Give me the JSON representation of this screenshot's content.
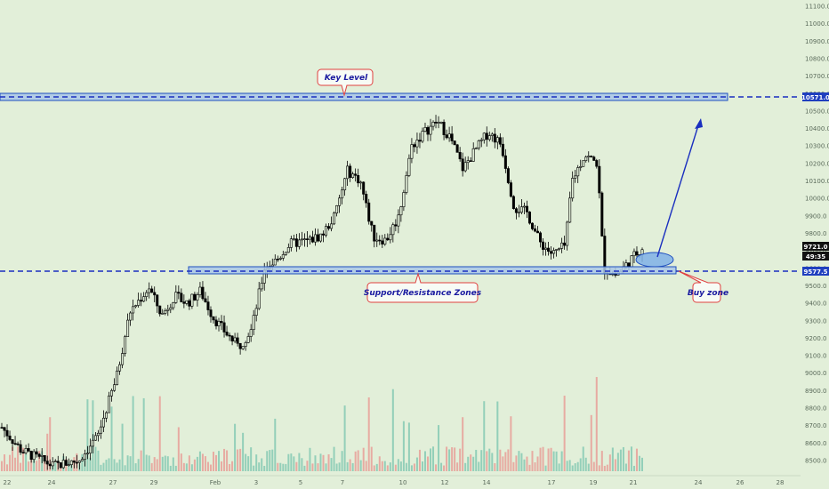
{
  "colors": {
    "background": "#e2efd9",
    "candle": "#000000",
    "vol_up": "#7fc7b0",
    "vol_down": "#e99a93",
    "zone_fill": "#a9c7e8",
    "zone_stroke": "#1f4fbf",
    "dash": "#1a2fbf",
    "arrow": "#1a2fbf",
    "callout_text": "#1a1aa0",
    "callout_border": "#e04040"
  },
  "annotations": {
    "key_level": "Key Level",
    "sr_zones": "Support/Resistance Zones",
    "buy_zone": "Buy zone"
  },
  "price_tags": {
    "upper": "10571.0",
    "current": "9721.0",
    "countdown": "49:35",
    "lower": "9577.5"
  },
  "chart_data": {
    "type": "candlestick",
    "ylim": [
      8450,
      11150
    ],
    "y_ticks": [
      "11100.0",
      "11000.0",
      "10900.0",
      "10800.0",
      "10700.0",
      "10600.0",
      "10500.0",
      "10400.0",
      "10300.0",
      "10200.0",
      "10100.0",
      "10000.0",
      "9900.0",
      "9800.0",
      "9700.0",
      "9600.0",
      "9500.0",
      "9400.0",
      "9300.0",
      "9200.0",
      "9100.0",
      "9000.0",
      "8900.0",
      "8800.0",
      "8700.0",
      "8600.0",
      "8500.0"
    ],
    "x_ticks": [
      "22",
      "24",
      "27",
      "29",
      "Feb",
      "3",
      "5",
      "7",
      "10",
      "12",
      "14",
      "17",
      "19",
      "21",
      "24",
      "26",
      "28"
    ],
    "price_path": [
      {
        "t": 0,
        "p": 8690
      },
      {
        "t": 0.03,
        "p": 8560
      },
      {
        "t": 0.08,
        "p": 8470
      },
      {
        "t": 0.12,
        "p": 8500
      },
      {
        "t": 0.15,
        "p": 8640
      },
      {
        "t": 0.18,
        "p": 8990
      },
      {
        "t": 0.2,
        "p": 9350
      },
      {
        "t": 0.23,
        "p": 9490
      },
      {
        "t": 0.25,
        "p": 9330
      },
      {
        "t": 0.27,
        "p": 9440
      },
      {
        "t": 0.29,
        "p": 9400
      },
      {
        "t": 0.31,
        "p": 9470
      },
      {
        "t": 0.33,
        "p": 9320
      },
      {
        "t": 0.35,
        "p": 9230
      },
      {
        "t": 0.37,
        "p": 9150
      },
      {
        "t": 0.39,
        "p": 9250
      },
      {
        "t": 0.41,
        "p": 9600
      },
      {
        "t": 0.43,
        "p": 9650
      },
      {
        "t": 0.45,
        "p": 9740
      },
      {
        "t": 0.48,
        "p": 9760
      },
      {
        "t": 0.5,
        "p": 9790
      },
      {
        "t": 0.52,
        "p": 9900
      },
      {
        "t": 0.54,
        "p": 10160
      },
      {
        "t": 0.56,
        "p": 10100
      },
      {
        "t": 0.58,
        "p": 9780
      },
      {
        "t": 0.6,
        "p": 9760
      },
      {
        "t": 0.62,
        "p": 9900
      },
      {
        "t": 0.64,
        "p": 10300
      },
      {
        "t": 0.66,
        "p": 10380
      },
      {
        "t": 0.68,
        "p": 10440
      },
      {
        "t": 0.7,
        "p": 10350
      },
      {
        "t": 0.72,
        "p": 10170
      },
      {
        "t": 0.74,
        "p": 10280
      },
      {
        "t": 0.76,
        "p": 10380
      },
      {
        "t": 0.78,
        "p": 10310
      },
      {
        "t": 0.8,
        "p": 9950
      },
      {
        "t": 0.82,
        "p": 9920
      },
      {
        "t": 0.84,
        "p": 9750
      },
      {
        "t": 0.86,
        "p": 9680
      },
      {
        "t": 0.88,
        "p": 9730
      },
      {
        "t": 0.89,
        "p": 10100
      },
      {
        "t": 0.91,
        "p": 10250
      },
      {
        "t": 0.93,
        "p": 10200
      },
      {
        "t": 0.94,
        "p": 9600
      },
      {
        "t": 0.96,
        "p": 9560
      },
      {
        "t": 0.98,
        "p": 9640
      },
      {
        "t": 1,
        "p": 9721
      }
    ],
    "levels": [
      10571.0,
      9577.5
    ],
    "grid": false
  }
}
